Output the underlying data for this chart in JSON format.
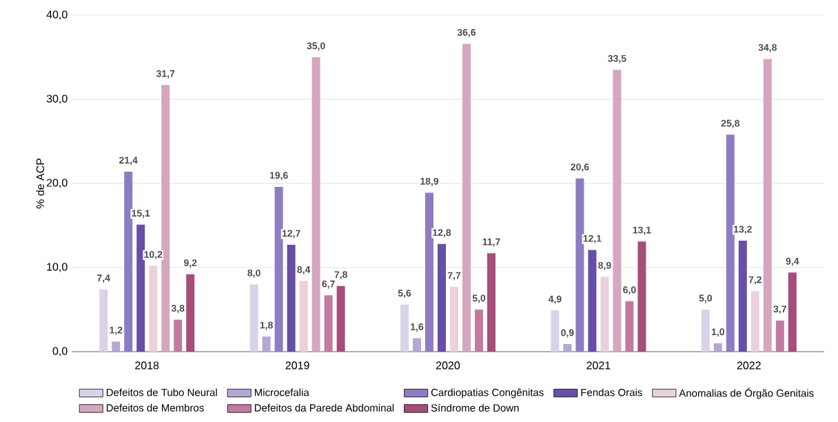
{
  "chart_data": {
    "type": "bar",
    "ylabel": "% de ACP",
    "categories": [
      "2018",
      "2019",
      "2020",
      "2021",
      "2022"
    ],
    "ylim": [
      0,
      40
    ],
    "yticks": [
      {
        "value": 0,
        "label": "0,0"
      },
      {
        "value": 10,
        "label": "10,0"
      },
      {
        "value": 20,
        "label": "20,0"
      },
      {
        "value": 30,
        "label": "30,0"
      },
      {
        "value": 40,
        "label": "40,0"
      }
    ],
    "grid": "y",
    "legend": "bottom",
    "series": [
      {
        "name": "Defeitos de Tubo Neural",
        "color": "#d9d2e9",
        "values": [
          7.4,
          8.0,
          5.6,
          4.9,
          5.0
        ],
        "value_labels": [
          "7,4",
          "8,0",
          "5,6",
          "4,9",
          "5,0"
        ]
      },
      {
        "name": "Microcefalia",
        "color": "#b4a7d6",
        "values": [
          1.2,
          1.8,
          1.6,
          0.9,
          1.0
        ],
        "value_labels": [
          "1,2",
          "1,8",
          "1,6",
          "0,9",
          "1,0"
        ]
      },
      {
        "name": "Cardiopatias Congênitas",
        "color": "#8e7cc3",
        "values": [
          21.4,
          19.6,
          18.9,
          20.6,
          25.8
        ],
        "value_labels": [
          "21,4",
          "19,6",
          "18,9",
          "20,6",
          "25,8"
        ]
      },
      {
        "name": "Fendas Orais",
        "color": "#674ea7",
        "values": [
          15.1,
          12.7,
          12.8,
          12.1,
          13.2
        ],
        "value_labels": [
          "15,1",
          "12,7",
          "12,8",
          "12,1",
          "13,2"
        ]
      },
      {
        "name": "Anomalias de Órgão Genitais",
        "color": "#ead1dc",
        "values": [
          10.2,
          8.4,
          7.7,
          8.9,
          7.2
        ],
        "value_labels": [
          "10,2",
          "8,4",
          "7,7",
          "8,9",
          "7,2"
        ]
      },
      {
        "name": "Defeitos de Membros",
        "color": "#d5a6bd",
        "values": [
          31.7,
          35.0,
          36.6,
          33.5,
          34.8
        ],
        "value_labels": [
          "31,7",
          "35,0",
          "36,6",
          "33,5",
          "34,8"
        ]
      },
      {
        "name": "Defeitos da Parede Abdominal",
        "color": "#c27ba0",
        "values": [
          3.8,
          6.7,
          5.0,
          6.0,
          3.7
        ],
        "value_labels": [
          "3,8",
          "6,7",
          "5,0",
          "6,0",
          "3,7"
        ]
      },
      {
        "name": "Síndrome de Down",
        "color": "#a64d79",
        "values": [
          9.2,
          7.8,
          11.7,
          13.1,
          9.4
        ],
        "value_labels": [
          "9,2",
          "7,8",
          "11,7",
          "13,1",
          "9,4"
        ]
      }
    ]
  }
}
